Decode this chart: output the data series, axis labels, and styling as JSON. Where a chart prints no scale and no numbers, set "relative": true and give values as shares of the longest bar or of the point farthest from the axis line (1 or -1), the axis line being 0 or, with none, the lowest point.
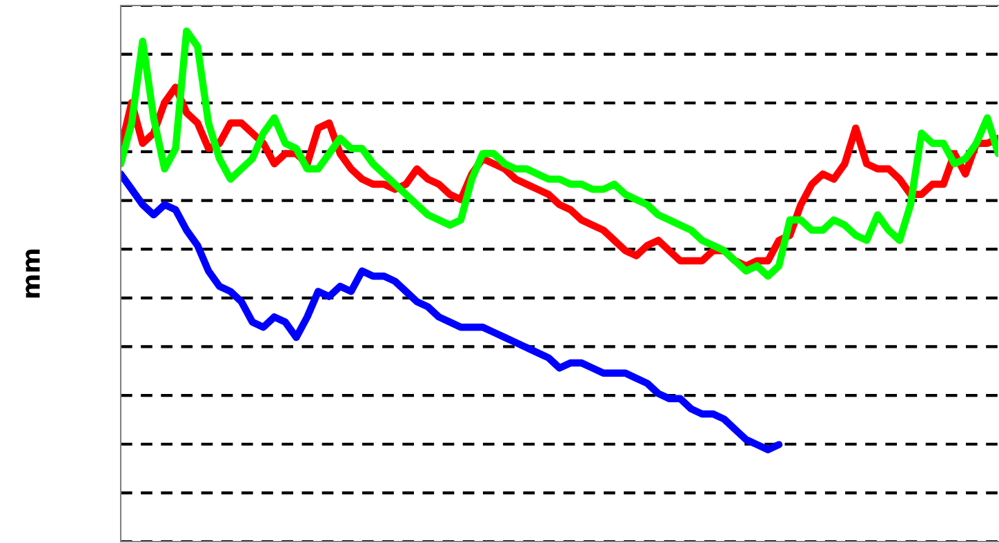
{
  "chart_data": {
    "type": "line",
    "ylabel": "mm",
    "relative": true,
    "grid": "y",
    "tick_labels": false,
    "line_style": "solid",
    "marker": "none",
    "categories": [
      null,
      null,
      null,
      null,
      null,
      null,
      null,
      null,
      null,
      null,
      null,
      null,
      null,
      null,
      null,
      null,
      null,
      null,
      null,
      null,
      null,
      null,
      null,
      null,
      null,
      null,
      null,
      null,
      null,
      null,
      null,
      null,
      null,
      null,
      null,
      null,
      null,
      null,
      null,
      null,
      null,
      null,
      null,
      null,
      null,
      null,
      null,
      null,
      null,
      null,
      null,
      null,
      null,
      null,
      null,
      null,
      null,
      null,
      null,
      null,
      null,
      null,
      null,
      null,
      null,
      null,
      null,
      null,
      null,
      null,
      null,
      null,
      null,
      null,
      null,
      null,
      null,
      null,
      null,
      null,
      null
    ],
    "series": [
      {
        "color": "#0000ff",
        "values": [
          0.72,
          0.69,
          0.66,
          0.64,
          0.66,
          0.65,
          0.61,
          0.58,
          0.53,
          0.5,
          0.49,
          0.47,
          0.43,
          0.42,
          0.44,
          0.43,
          0.4,
          0.44,
          0.49,
          0.48,
          0.5,
          0.49,
          0.53,
          0.52,
          0.52,
          0.51,
          0.49,
          0.47,
          0.46,
          0.44,
          0.43,
          0.42,
          0.42,
          0.42,
          0.41,
          0.4,
          0.39,
          0.38,
          0.37,
          0.36,
          0.34,
          0.35,
          0.35,
          0.34,
          0.33,
          0.33,
          0.33,
          0.32,
          0.31,
          0.29,
          0.28,
          0.28,
          0.26,
          0.25,
          0.25,
          0.24,
          0.22,
          0.2,
          0.19,
          0.18,
          0.19,
          null,
          null,
          null,
          null,
          null,
          null,
          null,
          null,
          null,
          null,
          null,
          null,
          null,
          null,
          null,
          null,
          null,
          null,
          null,
          null
        ]
      },
      {
        "color": "#ff0000",
        "values": [
          0.77,
          0.86,
          0.78,
          0.8,
          0.86,
          0.89,
          0.84,
          0.82,
          0.77,
          0.78,
          0.82,
          0.82,
          0.8,
          0.78,
          0.74,
          0.76,
          0.76,
          0.74,
          0.81,
          0.82,
          0.76,
          0.73,
          0.71,
          0.7,
          0.7,
          0.69,
          0.7,
          0.73,
          0.71,
          0.7,
          0.68,
          0.67,
          0.72,
          0.75,
          0.74,
          0.73,
          0.71,
          0.7,
          0.69,
          0.68,
          0.66,
          0.65,
          0.63,
          0.62,
          0.61,
          0.59,
          0.57,
          0.56,
          0.58,
          0.59,
          0.57,
          0.55,
          0.55,
          0.55,
          0.57,
          0.57,
          0.55,
          0.54,
          0.55,
          0.55,
          0.59,
          0.6,
          0.66,
          0.7,
          0.72,
          0.71,
          0.74,
          0.81,
          0.74,
          0.73,
          0.73,
          0.71,
          0.68,
          0.68,
          0.7,
          0.7,
          0.76,
          0.72,
          0.78,
          0.78,
          0.79
        ]
      },
      {
        "color": "#00ff00",
        "values": [
          0.74,
          0.82,
          0.98,
          0.83,
          0.73,
          0.77,
          1.0,
          0.97,
          0.82,
          0.75,
          0.71,
          0.73,
          0.75,
          0.8,
          0.83,
          0.78,
          0.77,
          0.73,
          0.73,
          0.76,
          0.79,
          0.77,
          0.77,
          0.74,
          0.72,
          0.7,
          0.68,
          0.66,
          0.64,
          0.63,
          0.62,
          0.63,
          0.71,
          0.76,
          0.76,
          0.74,
          0.73,
          0.73,
          0.72,
          0.71,
          0.71,
          0.7,
          0.7,
          0.69,
          0.69,
          0.7,
          0.68,
          0.67,
          0.66,
          0.64,
          0.63,
          0.62,
          0.61,
          0.59,
          0.58,
          0.57,
          0.55,
          0.53,
          0.54,
          0.52,
          0.54,
          0.63,
          0.63,
          0.61,
          0.61,
          0.63,
          0.62,
          0.6,
          0.59,
          0.64,
          0.61,
          0.59,
          0.66,
          0.8,
          0.78,
          0.78,
          0.74,
          0.75,
          0.78,
          0.83,
          0.76
        ]
      }
    ]
  }
}
